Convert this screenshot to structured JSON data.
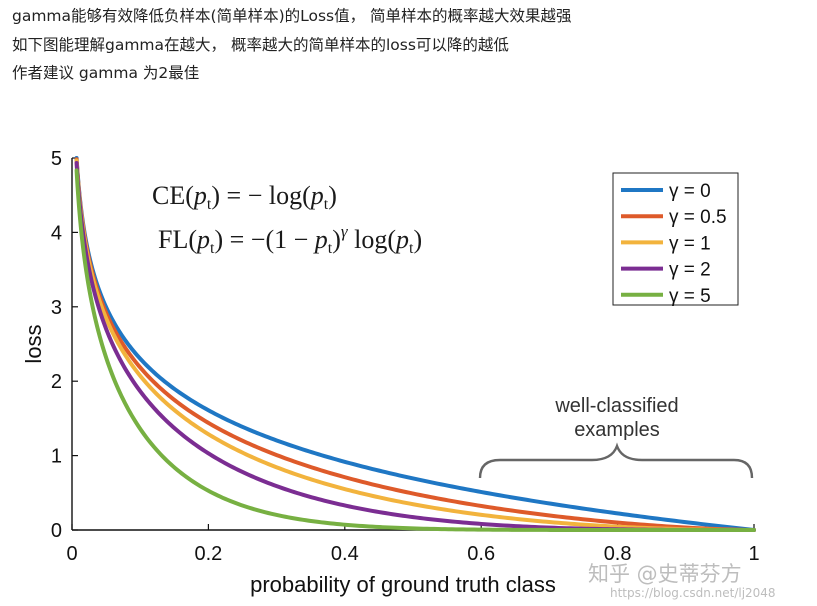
{
  "article": {
    "lines": [
      "gamma能够有效降低负样本(简单样本)的Loss值， 简单样本的概率越大效果越强",
      "如下图能理解gamma在越大， 概率越大的简单样本的loss可以降的越低",
      "作者建议 gamma 为2最佳"
    ]
  },
  "formulas": {
    "ce": {
      "lhs_name": "CE",
      "open": "(",
      "p": "p",
      "sub": "t",
      "close": ")",
      "rest_equals": " = −",
      "fn": " log",
      "arg_open": "(",
      "arg_close": ")"
    },
    "fl": {
      "lhs_name": "FL",
      "open": "(",
      "p": "p",
      "sub": "t",
      "close": ")",
      "rest_equals": " = −(1 − ",
      "gamma_sup": "γ",
      "fn": " log",
      "arg_open": "(",
      "arg_close": ")"
    }
  },
  "annotation": {
    "line1": "well-classified",
    "line2": "examples"
  },
  "watermark": {
    "zhihu": "知乎 @史蒂芬方",
    "csdn": "https://blog.csdn.net/lj2048"
  },
  "chart_data": {
    "type": "line",
    "title": "",
    "xlabel": "probability of ground truth class",
    "ylabel": "loss",
    "xlim": [
      0,
      1
    ],
    "ylim": [
      0,
      5
    ],
    "x_ticks": [
      "0",
      "0.2",
      "0.4",
      "0.6",
      "0.8",
      "1"
    ],
    "x_tick_values": [
      0,
      0.2,
      0.4,
      0.6,
      0.8,
      1
    ],
    "y_ticks": [
      "0",
      "1",
      "2",
      "3",
      "4",
      "5"
    ],
    "y_tick_values": [
      0,
      1,
      2,
      3,
      4,
      5
    ],
    "grid": false,
    "legend_position": "top-right",
    "series": [
      {
        "name": "γ = 0",
        "gamma": 0,
        "color": "#1f77c4",
        "x": [
          0.00674,
          0.01,
          0.02,
          0.05,
          0.1,
          0.15,
          0.2,
          0.3,
          0.4,
          0.5,
          0.6,
          0.7,
          0.8,
          0.9,
          1.0
        ],
        "y": [
          5.0,
          4.605,
          3.912,
          2.996,
          2.303,
          1.897,
          1.609,
          1.204,
          0.916,
          0.693,
          0.511,
          0.357,
          0.223,
          0.105,
          0.0
        ]
      },
      {
        "name": "γ = 0.5",
        "gamma": 0.5,
        "color": "#de5a2a",
        "x": [
          0.00674,
          0.01,
          0.02,
          0.05,
          0.1,
          0.15,
          0.2,
          0.3,
          0.4,
          0.5,
          0.6,
          0.7,
          0.8,
          0.9,
          1.0
        ],
        "y": [
          4.983,
          4.582,
          3.873,
          2.92,
          2.185,
          1.749,
          1.44,
          1.007,
          0.71,
          0.49,
          0.323,
          0.196,
          0.1,
          0.033,
          0.0
        ]
      },
      {
        "name": "γ = 1",
        "gamma": 1,
        "color": "#f2b33d",
        "x": [
          0.00674,
          0.01,
          0.02,
          0.05,
          0.1,
          0.15,
          0.2,
          0.3,
          0.4,
          0.5,
          0.6,
          0.7,
          0.8,
          0.9,
          1.0
        ],
        "y": [
          4.966,
          4.559,
          3.834,
          2.846,
          2.072,
          1.612,
          1.288,
          0.843,
          0.55,
          0.347,
          0.204,
          0.107,
          0.045,
          0.011,
          0.0
        ]
      },
      {
        "name": "γ = 2",
        "gamma": 2,
        "color": "#7b2d92",
        "x": [
          0.00674,
          0.01,
          0.02,
          0.05,
          0.1,
          0.15,
          0.2,
          0.3,
          0.4,
          0.5,
          0.6,
          0.7,
          0.8,
          0.9,
          1.0
        ],
        "y": [
          4.933,
          4.513,
          3.757,
          2.704,
          1.865,
          1.371,
          1.03,
          0.59,
          0.33,
          0.173,
          0.082,
          0.032,
          0.009,
          0.001,
          0.0
        ]
      },
      {
        "name": "γ = 5",
        "gamma": 5,
        "color": "#77b042",
        "x": [
          0.00674,
          0.01,
          0.02,
          0.05,
          0.1,
          0.15,
          0.2,
          0.3,
          0.4,
          0.5,
          0.6,
          0.7,
          0.8,
          0.9,
          1.0
        ],
        "y": [
          4.834,
          4.379,
          3.542,
          2.318,
          1.36,
          0.842,
          0.527,
          0.203,
          0.071,
          0.022,
          0.005,
          0.001,
          0.0,
          0.0,
          0.0
        ]
      }
    ]
  }
}
